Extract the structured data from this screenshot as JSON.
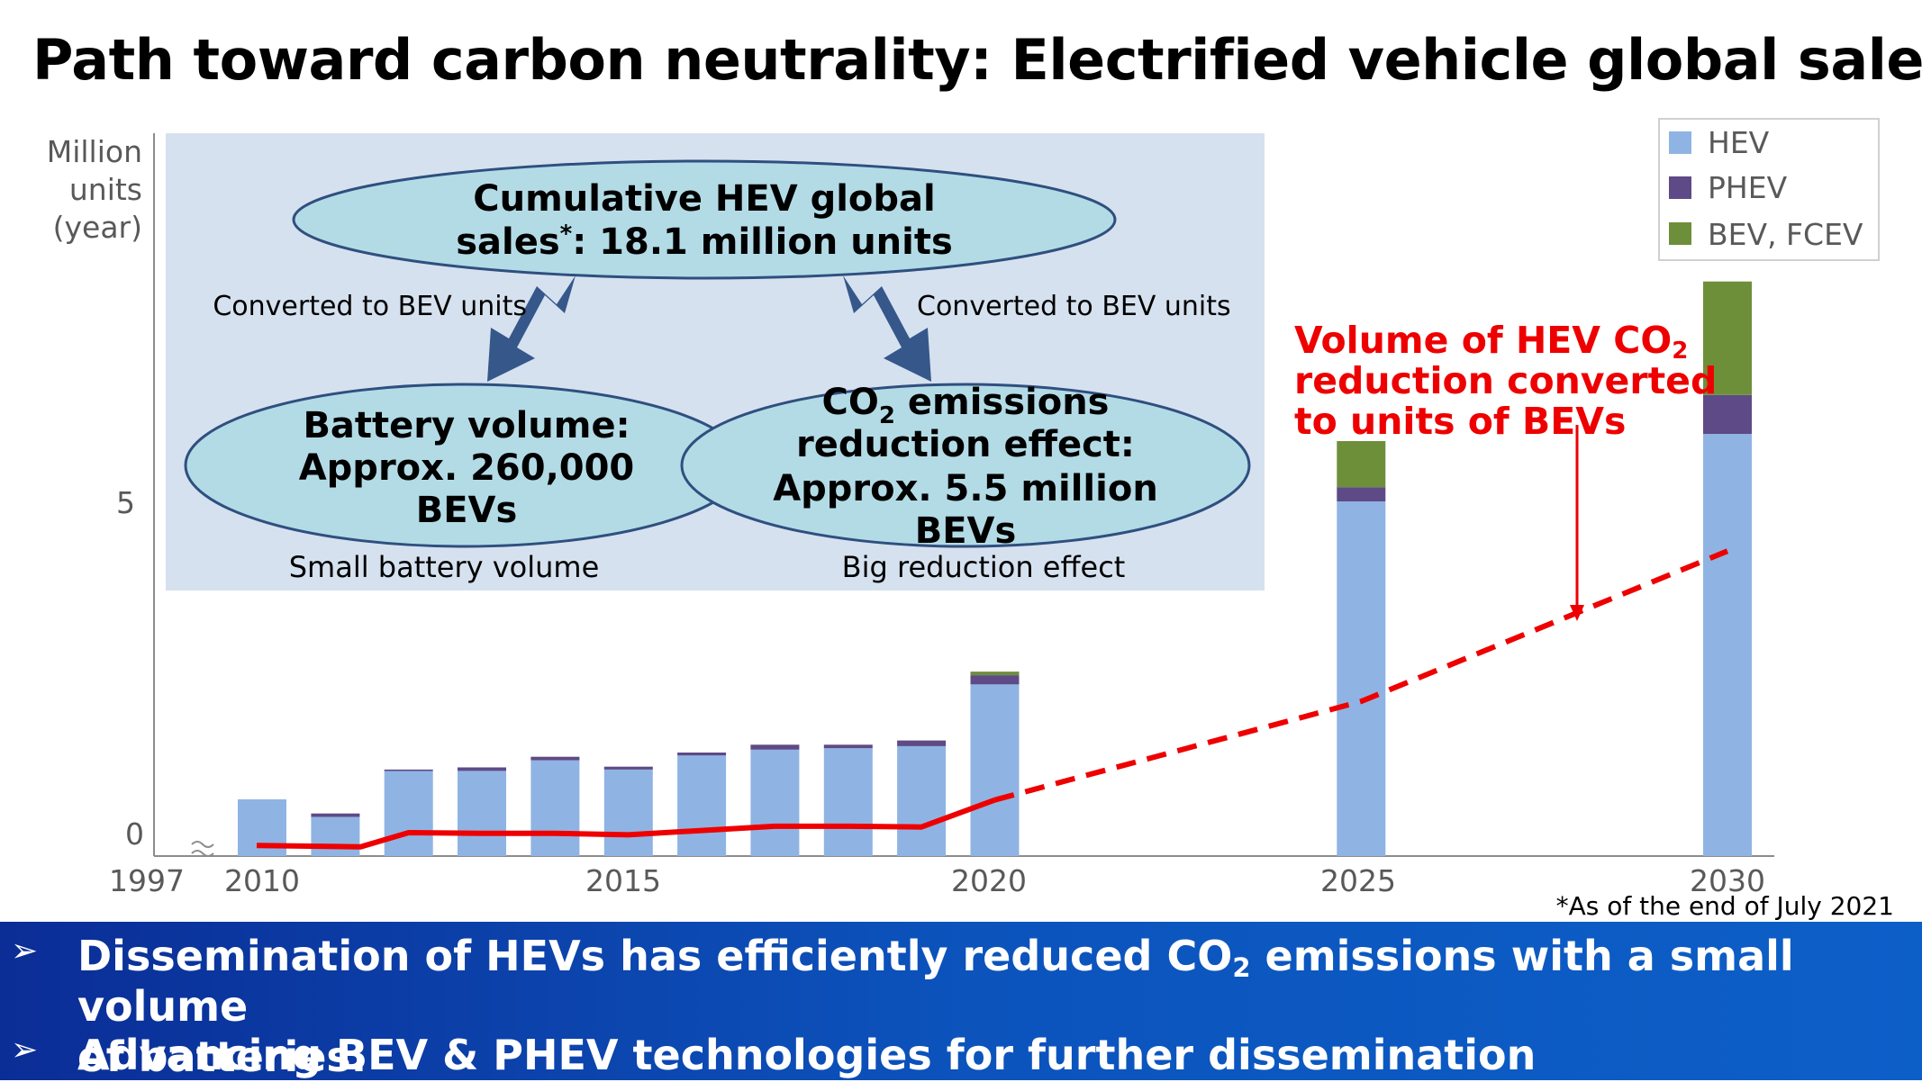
{
  "title": "Path toward carbon neutrality: Electrified vehicle global sales",
  "colors": {
    "hev": "#8fb4e3",
    "phev": "#5e4a86",
    "bev_fcev": "#6e8f3a",
    "red_line": "#ee0000",
    "panel_bg": "#d6e1ef",
    "ellipse": "#b3dbe6",
    "ellipse_stroke": "#2f4f7f",
    "arrow": "#36578a",
    "banner": "#0d4fb4"
  },
  "chart_data": {
    "type": "bar",
    "stacked": true,
    "ylabel_lines": [
      "Million",
      "units",
      "(year)"
    ],
    "y_ticks": [
      "0",
      "5"
    ],
    "ylim": [
      0,
      8
    ],
    "x_axis_break_label": "1997",
    "x_ticks": [
      "2010",
      "2015",
      "2020",
      "2025",
      "2030"
    ],
    "categories": [
      "2010",
      "2011",
      "2012",
      "2013",
      "2014",
      "2015",
      "2016",
      "2017",
      "2018",
      "2019",
      "2020",
      "2025",
      "2030"
    ],
    "series": [
      {
        "name": "HEV",
        "values": [
          0.8,
          0.55,
          1.2,
          1.2,
          1.35,
          1.22,
          1.42,
          1.5,
          1.52,
          1.55,
          2.42,
          5.0,
          5.95
        ]
      },
      {
        "name": "PHEV",
        "values": [
          0.0,
          0.05,
          0.02,
          0.05,
          0.05,
          0.04,
          0.04,
          0.07,
          0.05,
          0.08,
          0.13,
          0.2,
          0.55
        ]
      },
      {
        "name": "BEV, FCEV",
        "values": [
          0.0,
          0.0,
          0.0,
          0.0,
          0.0,
          0.0,
          0.0,
          0.0,
          0.0,
          0.0,
          0.05,
          0.65,
          1.6
        ]
      }
    ],
    "co2_line": {
      "solid_x": [
        "1997",
        "2011",
        "2012",
        "2013",
        "2014",
        "2015",
        "2016",
        "2017",
        "2018",
        "2019",
        "2020"
      ],
      "solid_y": [
        0.15,
        0.13,
        0.33,
        0.32,
        0.32,
        0.3,
        0.36,
        0.42,
        0.42,
        0.41,
        0.79
      ],
      "dashed_x": [
        "2020",
        "2025",
        "2030"
      ],
      "dashed_y": [
        0.79,
        2.18,
        4.3
      ]
    },
    "annotation_lines": [
      "Volume of HEV CO",
      "2",
      "reduction converted",
      "to units of BEVs"
    ],
    "footnote": "*As of the end of July 2021"
  },
  "panel": {
    "top_ellipse": {
      "line1": "Cumulative HEV global",
      "line2_pre": "sales",
      "line2_sup": "*",
      "line2_post": ": 18.1 million units"
    },
    "left_arrow_label": "Converted to BEV units",
    "right_arrow_label": "Converted to BEV units",
    "left_ellipse": {
      "line1": "Battery volume:",
      "line2": "Approx. 260,000",
      "line3": "BEVs"
    },
    "right_ellipse": {
      "line1_pre": "CO",
      "line1_sub": "2",
      "line1_post": " emissions",
      "line2": "reduction effect:",
      "line3": "Approx. 5.5 million",
      "line4": "BEVs"
    },
    "left_caption": "Small battery volume",
    "right_caption": "Big reduction effect"
  },
  "bullets": [
    {
      "pre": "Dissemination of HEVs has efficiently reduced CO",
      "sub": "2",
      "post": " emissions with a small volume",
      "line2": "of batteries."
    },
    {
      "text": "Advancing BEV & PHEV technologies for further dissemination"
    }
  ],
  "bullet_mark": "➢"
}
